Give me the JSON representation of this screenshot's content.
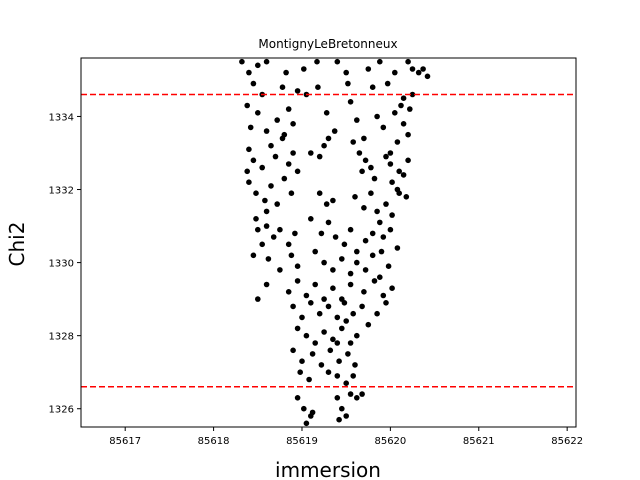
{
  "chart_data": {
    "type": "scatter",
    "title": "MontignyLeBretonneux",
    "xlabel": "immersion",
    "ylabel": "Chi2",
    "xlim": [
      85616.5,
      85622.1
    ],
    "ylim": [
      1325.5,
      1335.6
    ],
    "xticks": [
      85617,
      85618,
      85619,
      85620,
      85621,
      85622
    ],
    "yticks": [
      1326,
      1328,
      1330,
      1332,
      1334
    ],
    "grid": false,
    "hlines": [
      {
        "y": 1334.6,
        "color": "#ff0000",
        "style": "dashed"
      },
      {
        "y": 1326.6,
        "color": "#ff0000",
        "style": "dashed"
      }
    ],
    "marker_color": "#000000",
    "series": [
      {
        "points": [
          [
            85618.32,
            1335.5
          ],
          [
            85618.4,
            1335.2
          ],
          [
            85618.5,
            1335.4
          ],
          [
            85618.6,
            1335.5
          ],
          [
            85618.82,
            1335.2
          ],
          [
            85619.02,
            1335.3
          ],
          [
            85619.17,
            1335.5
          ],
          [
            85619.4,
            1335.5
          ],
          [
            85619.5,
            1335.2
          ],
          [
            85619.75,
            1335.3
          ],
          [
            85619.88,
            1335.5
          ],
          [
            85620.05,
            1335.2
          ],
          [
            85620.2,
            1335.5
          ],
          [
            85620.25,
            1335.3
          ],
          [
            85620.32,
            1335.2
          ],
          [
            85620.37,
            1335.3
          ],
          [
            85620.42,
            1335.1
          ],
          [
            85618.45,
            1334.9
          ],
          [
            85618.55,
            1334.6
          ],
          [
            85618.78,
            1334.8
          ],
          [
            85618.95,
            1334.7
          ],
          [
            85619.18,
            1334.8
          ],
          [
            85619.52,
            1334.9
          ],
          [
            85619.8,
            1334.8
          ],
          [
            85619.97,
            1334.9
          ],
          [
            85620.15,
            1334.5
          ],
          [
            85620.25,
            1334.6
          ],
          [
            85620.12,
            1334.3
          ],
          [
            85620.22,
            1334.2
          ],
          [
            85618.38,
            1334.3
          ],
          [
            85618.5,
            1334.1
          ],
          [
            85618.42,
            1333.7
          ],
          [
            85618.6,
            1333.6
          ],
          [
            85618.72,
            1333.9
          ],
          [
            85618.85,
            1334.2
          ],
          [
            85618.9,
            1333.8
          ],
          [
            85618.8,
            1333.5
          ],
          [
            85619.05,
            1334.6
          ],
          [
            85619.28,
            1334.1
          ],
          [
            85619.37,
            1333.6
          ],
          [
            85619.3,
            1333.4
          ],
          [
            85619.55,
            1334.4
          ],
          [
            85619.62,
            1333.9
          ],
          [
            85619.7,
            1333.4
          ],
          [
            85619.85,
            1334.0
          ],
          [
            85619.92,
            1333.7
          ],
          [
            85620.05,
            1334.1
          ],
          [
            85620.15,
            1333.8
          ],
          [
            85620.08,
            1333.3
          ],
          [
            85620.2,
            1333.5
          ],
          [
            85620.0,
            1333.0
          ],
          [
            85618.4,
            1333.1
          ],
          [
            85618.45,
            1332.8
          ],
          [
            85618.55,
            1332.6
          ],
          [
            85618.38,
            1332.5
          ],
          [
            85618.65,
            1333.2
          ],
          [
            85618.7,
            1332.9
          ],
          [
            85618.78,
            1333.4
          ],
          [
            85618.85,
            1332.7
          ],
          [
            85618.9,
            1333.0
          ],
          [
            85618.95,
            1332.5
          ],
          [
            85619.1,
            1333.0
          ],
          [
            85619.2,
            1332.9
          ],
          [
            85619.25,
            1333.2
          ],
          [
            85619.58,
            1333.3
          ],
          [
            85619.65,
            1333.0
          ],
          [
            85619.72,
            1332.8
          ],
          [
            85619.78,
            1332.6
          ],
          [
            85619.82,
            1332.3
          ],
          [
            85619.68,
            1332.5
          ],
          [
            85619.95,
            1332.9
          ],
          [
            85620.0,
            1332.7
          ],
          [
            85620.1,
            1332.5
          ],
          [
            85620.02,
            1332.2
          ],
          [
            85620.15,
            1332.4
          ],
          [
            85620.2,
            1332.8
          ],
          [
            85620.08,
            1332.0
          ],
          [
            85620.18,
            1331.8
          ],
          [
            85618.4,
            1332.2
          ],
          [
            85618.48,
            1331.9
          ],
          [
            85618.58,
            1331.7
          ],
          [
            85618.65,
            1332.1
          ],
          [
            85618.72,
            1331.6
          ],
          [
            85618.8,
            1332.3
          ],
          [
            85618.88,
            1331.9
          ],
          [
            85618.6,
            1331.4
          ],
          [
            85618.48,
            1331.2
          ],
          [
            85619.2,
            1331.9
          ],
          [
            85619.28,
            1331.6
          ],
          [
            85619.35,
            1331.7
          ],
          [
            85619.6,
            1331.8
          ],
          [
            85619.7,
            1331.5
          ],
          [
            85619.78,
            1331.9
          ],
          [
            85619.85,
            1331.4
          ],
          [
            85619.95,
            1331.6
          ],
          [
            85620.02,
            1331.3
          ],
          [
            85620.1,
            1331.9
          ],
          [
            85619.88,
            1331.1
          ],
          [
            85619.8,
            1330.8
          ],
          [
            85618.5,
            1330.9
          ],
          [
            85618.6,
            1331.0
          ],
          [
            85618.68,
            1330.7
          ],
          [
            85618.75,
            1330.9
          ],
          [
            85618.85,
            1330.5
          ],
          [
            85618.92,
            1330.8
          ],
          [
            85618.55,
            1330.5
          ],
          [
            85619.1,
            1331.2
          ],
          [
            85619.22,
            1330.8
          ],
          [
            85619.3,
            1331.1
          ],
          [
            85619.38,
            1330.7
          ],
          [
            85619.48,
            1330.5
          ],
          [
            85619.55,
            1330.9
          ],
          [
            85619.62,
            1330.3
          ],
          [
            85619.72,
            1330.6
          ],
          [
            85619.92,
            1330.7
          ],
          [
            85620.0,
            1330.9
          ],
          [
            85620.08,
            1330.4
          ],
          [
            85619.9,
            1330.3
          ],
          [
            85618.45,
            1330.2
          ],
          [
            85618.62,
            1330.1
          ],
          [
            85618.75,
            1329.8
          ],
          [
            85618.88,
            1330.2
          ],
          [
            85618.95,
            1329.9
          ],
          [
            85619.15,
            1330.3
          ],
          [
            85619.25,
            1330.0
          ],
          [
            85619.35,
            1329.8
          ],
          [
            85619.45,
            1330.1
          ],
          [
            85619.55,
            1329.7
          ],
          [
            85619.62,
            1330.0
          ],
          [
            85619.72,
            1329.8
          ],
          [
            85619.8,
            1330.2
          ],
          [
            85619.88,
            1329.6
          ],
          [
            85619.98,
            1329.9
          ],
          [
            85618.6,
            1329.4
          ],
          [
            85618.85,
            1329.2
          ],
          [
            85618.95,
            1329.5
          ],
          [
            85619.05,
            1329.1
          ],
          [
            85619.15,
            1329.4
          ],
          [
            85619.25,
            1329.0
          ],
          [
            85619.35,
            1329.3
          ],
          [
            85619.45,
            1329.0
          ],
          [
            85619.55,
            1329.4
          ],
          [
            85619.7,
            1329.2
          ],
          [
            85619.82,
            1329.5
          ],
          [
            85619.92,
            1329.1
          ],
          [
            85620.02,
            1329.3
          ],
          [
            85618.5,
            1329.0
          ],
          [
            85618.9,
            1328.8
          ],
          [
            85619.0,
            1328.5
          ],
          [
            85619.1,
            1328.9
          ],
          [
            85619.2,
            1328.6
          ],
          [
            85619.3,
            1328.8
          ],
          [
            85619.4,
            1328.5
          ],
          [
            85619.48,
            1328.9
          ],
          [
            85619.58,
            1328.6
          ],
          [
            85619.68,
            1328.8
          ],
          [
            85619.85,
            1328.6
          ],
          [
            85619.95,
            1328.9
          ],
          [
            85618.95,
            1328.2
          ],
          [
            85619.05,
            1328.0
          ],
          [
            85619.15,
            1327.8
          ],
          [
            85619.25,
            1328.1
          ],
          [
            85619.35,
            1327.9
          ],
          [
            85619.45,
            1328.2
          ],
          [
            85619.55,
            1327.8
          ],
          [
            85619.62,
            1328.0
          ],
          [
            85619.75,
            1328.3
          ],
          [
            85619.5,
            1328.4
          ],
          [
            85618.9,
            1327.6
          ],
          [
            85619.0,
            1327.3
          ],
          [
            85619.12,
            1327.5
          ],
          [
            85619.22,
            1327.2
          ],
          [
            85619.32,
            1327.6
          ],
          [
            85619.42,
            1327.3
          ],
          [
            85619.52,
            1327.5
          ],
          [
            85619.6,
            1327.2
          ],
          [
            85619.4,
            1327.8
          ],
          [
            85618.98,
            1327.0
          ],
          [
            85619.08,
            1326.8
          ],
          [
            85619.3,
            1327.0
          ],
          [
            85619.4,
            1326.9
          ],
          [
            85619.5,
            1326.7
          ],
          [
            85619.58,
            1326.9
          ],
          [
            85618.95,
            1326.3
          ],
          [
            85619.02,
            1326.0
          ],
          [
            85619.1,
            1325.8
          ],
          [
            85619.05,
            1325.6
          ],
          [
            85619.12,
            1325.9
          ],
          [
            85619.4,
            1326.3
          ],
          [
            85619.45,
            1326.0
          ],
          [
            85619.5,
            1325.8
          ],
          [
            85619.55,
            1326.4
          ],
          [
            85619.62,
            1326.3
          ],
          [
            85619.68,
            1326.4
          ],
          [
            85619.42,
            1325.7
          ]
        ]
      }
    ]
  }
}
